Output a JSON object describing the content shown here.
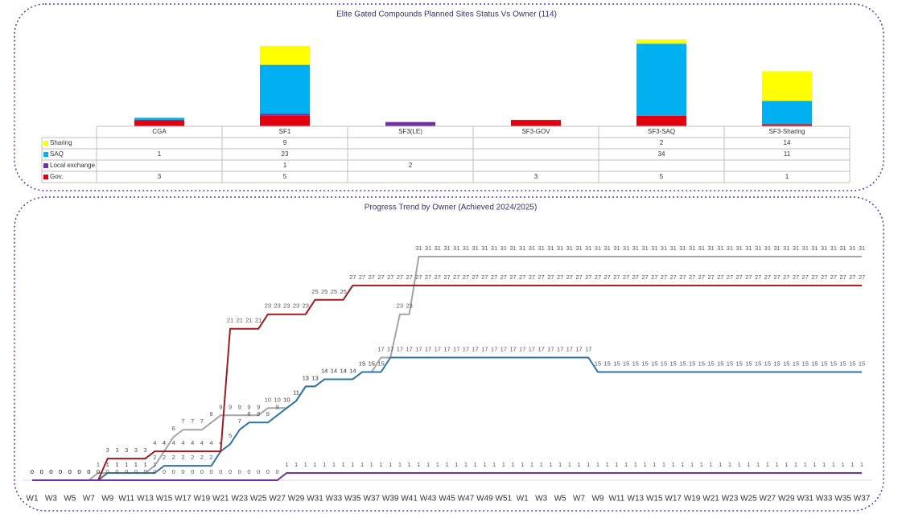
{
  "chart_data": [
    {
      "type": "bar",
      "stacked": true,
      "title": "Elite Gated Compounds Planned Sites Status Vs Owner (114)",
      "categories": [
        "CGA",
        "SF1",
        "SF3(LE)",
        "SF3-GOV",
        "SF3-SAQ",
        "SF3-Sharing"
      ],
      "series": [
        {
          "name": "Sharing",
          "color": "#ffff00",
          "values": [
            null,
            9,
            null,
            null,
            2,
            14
          ]
        },
        {
          "name": "SAQ",
          "color": "#00b0f0",
          "values": [
            1,
            23,
            null,
            null,
            34,
            11
          ]
        },
        {
          "name": "Local exchange",
          "color": "#7030a0",
          "values": [
            null,
            1,
            2,
            null,
            null,
            null
          ]
        },
        {
          "name": "Gov.",
          "color": "#e00010",
          "values": [
            3,
            5,
            null,
            3,
            5,
            1
          ]
        }
      ]
    },
    {
      "type": "line",
      "title": "Progress Trend by Owner (Achieved 2024/2025)",
      "categories": [
        "W1",
        null,
        "W3",
        null,
        "W5",
        null,
        "W7",
        null,
        "W9",
        null,
        "W11",
        null,
        "W13",
        null,
        "W15",
        null,
        "W17",
        null,
        "W19",
        null,
        "W21",
        null,
        "W23",
        null,
        "W25",
        null,
        "W27",
        null,
        "W29",
        null,
        "W31",
        null,
        "W33",
        null,
        "W35",
        null,
        "W37",
        null,
        "W39",
        null,
        "W41",
        null,
        "W43",
        null,
        "W45",
        null,
        "W47",
        null,
        "W49",
        null,
        "W51",
        null,
        "W1",
        null,
        "W3",
        null,
        "W5",
        null,
        "W7",
        null,
        "W9",
        null,
        "W11",
        null,
        "W13",
        null,
        "W15",
        null,
        "W17",
        null,
        "W19",
        null,
        "W21",
        null,
        "W23",
        null,
        "W25",
        null,
        "W27",
        null,
        "W29",
        null,
        "W31",
        null,
        "W33",
        null,
        "W35",
        null,
        "W37"
      ],
      "series": [
        {
          "color": "#a5a5a5",
          "values": [
            0,
            0,
            0,
            0,
            0,
            0,
            0,
            1,
            1,
            1,
            1,
            1,
            1,
            2,
            4,
            6,
            7,
            7,
            7,
            8,
            9,
            9,
            9,
            9,
            9,
            10,
            10,
            10,
            11,
            13,
            13,
            14,
            14,
            14,
            14,
            15,
            15,
            17,
            17,
            23,
            23,
            31,
            31,
            31,
            31,
            31,
            31,
            31,
            31,
            31,
            31,
            31,
            31,
            31,
            31,
            31,
            31,
            31,
            31,
            31,
            31,
            31,
            31,
            31,
            31,
            31,
            31,
            31,
            31,
            31,
            31,
            31,
            31,
            31,
            31,
            31,
            31,
            31,
            31,
            31,
            31,
            31,
            31,
            31,
            31,
            31,
            31,
            31,
            31
          ]
        },
        {
          "color": "#2e75a6",
          "values": [
            0,
            0,
            0,
            0,
            0,
            0,
            0,
            0,
            1,
            1,
            1,
            1,
            1,
            1,
            2,
            2,
            2,
            2,
            2,
            2,
            4,
            5,
            7,
            8,
            8,
            8,
            9,
            10,
            11,
            13,
            13,
            14,
            14,
            14,
            14,
            15,
            15,
            15,
            17,
            17,
            17,
            17,
            17,
            17,
            17,
            17,
            17,
            17,
            17,
            17,
            17,
            17,
            17,
            17,
            17,
            17,
            17,
            17,
            17,
            17,
            15,
            15,
            15,
            15,
            15,
            15,
            15,
            15,
            15,
            15,
            15,
            15,
            15,
            15,
            15,
            15,
            15,
            15,
            15,
            15,
            15,
            15,
            15,
            15,
            15,
            15,
            15,
            15,
            15
          ]
        },
        {
          "color": "#9e1b20",
          "values": [
            0,
            0,
            0,
            0,
            0,
            0,
            0,
            0,
            3,
            3,
            3,
            3,
            3,
            4,
            4,
            4,
            4,
            4,
            4,
            4,
            4,
            21,
            21,
            21,
            21,
            23,
            23,
            23,
            23,
            23,
            25,
            25,
            25,
            25,
            27,
            27,
            27,
            27,
            27,
            27,
            27,
            27,
            27,
            27,
            27,
            27,
            27,
            27,
            27,
            27,
            27,
            27,
            27,
            27,
            27,
            27,
            27,
            27,
            27,
            27,
            27,
            27,
            27,
            27,
            27,
            27,
            27,
            27,
            27,
            27,
            27,
            27,
            27,
            27,
            27,
            27,
            27,
            27,
            27,
            27,
            27,
            27,
            27,
            27,
            27,
            27,
            27,
            27,
            27
          ]
        },
        {
          "color": "#7030a0",
          "values": [
            0,
            0,
            0,
            0,
            0,
            0,
            0,
            0,
            0,
            0,
            0,
            0,
            0,
            0,
            0,
            0,
            0,
            0,
            0,
            0,
            0,
            0,
            0,
            0,
            0,
            0,
            0,
            1,
            1,
            1,
            1,
            1,
            1,
            1,
            1,
            1,
            1,
            1,
            1,
            1,
            1,
            1,
            1,
            1,
            1,
            1,
            1,
            1,
            1,
            1,
            1,
            1,
            1,
            1,
            1,
            1,
            1,
            1,
            1,
            1,
            1,
            1,
            1,
            1,
            1,
            1,
            1,
            1,
            1,
            1,
            1,
            1,
            1,
            1,
            1,
            1,
            1,
            1,
            1,
            1,
            1,
            1,
            1,
            1,
            1,
            1,
            1,
            1,
            1
          ]
        }
      ]
    }
  ]
}
